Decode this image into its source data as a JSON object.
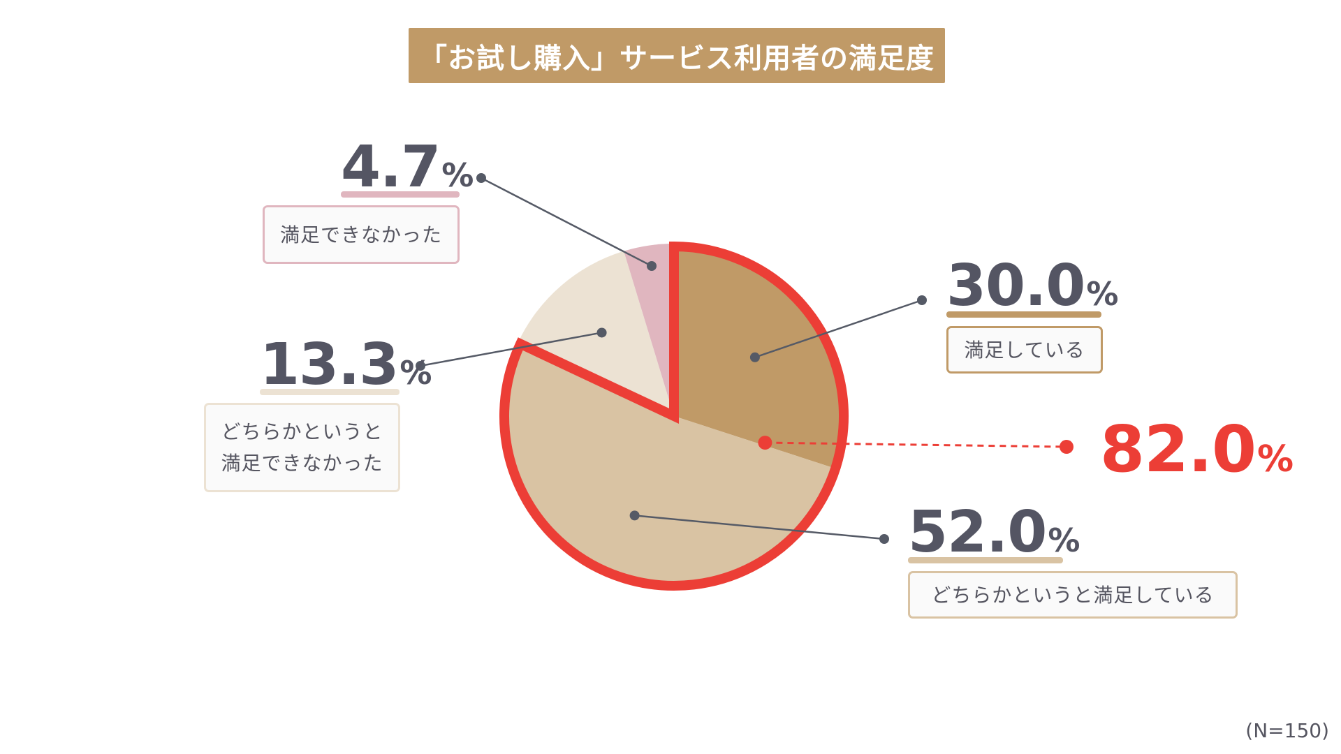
{
  "title": "「お試し購入」サービス利用者の満足度",
  "colors": {
    "title_bg": "#c09a67",
    "highlight": "#ec3e36",
    "connector": "#555a66"
  },
  "chart_data": {
    "type": "pie",
    "title": "「お試し購入」サービス利用者の満足度",
    "slices": [
      {
        "label": "満足している",
        "value": 30.0,
        "value_text": "30.0",
        "color": "#c09a67"
      },
      {
        "label": "どちらかというと満足している",
        "value": 52.0,
        "value_text": "52.0",
        "color": "#d9c3a3"
      },
      {
        "label": "どちらかというと\n満足できなかった",
        "value": 13.3,
        "value_text": "13.3",
        "color": "#ece2d3"
      },
      {
        "label": "満足できなかった",
        "value": 4.7,
        "value_text": "4.7",
        "color": "#e0b6bf"
      }
    ],
    "unit": "%",
    "highlight": {
      "value": 82.0,
      "value_text": "82.0",
      "includes": [
        "満足している",
        "どちらかというと満足している"
      ]
    },
    "note": "(N=150)"
  }
}
